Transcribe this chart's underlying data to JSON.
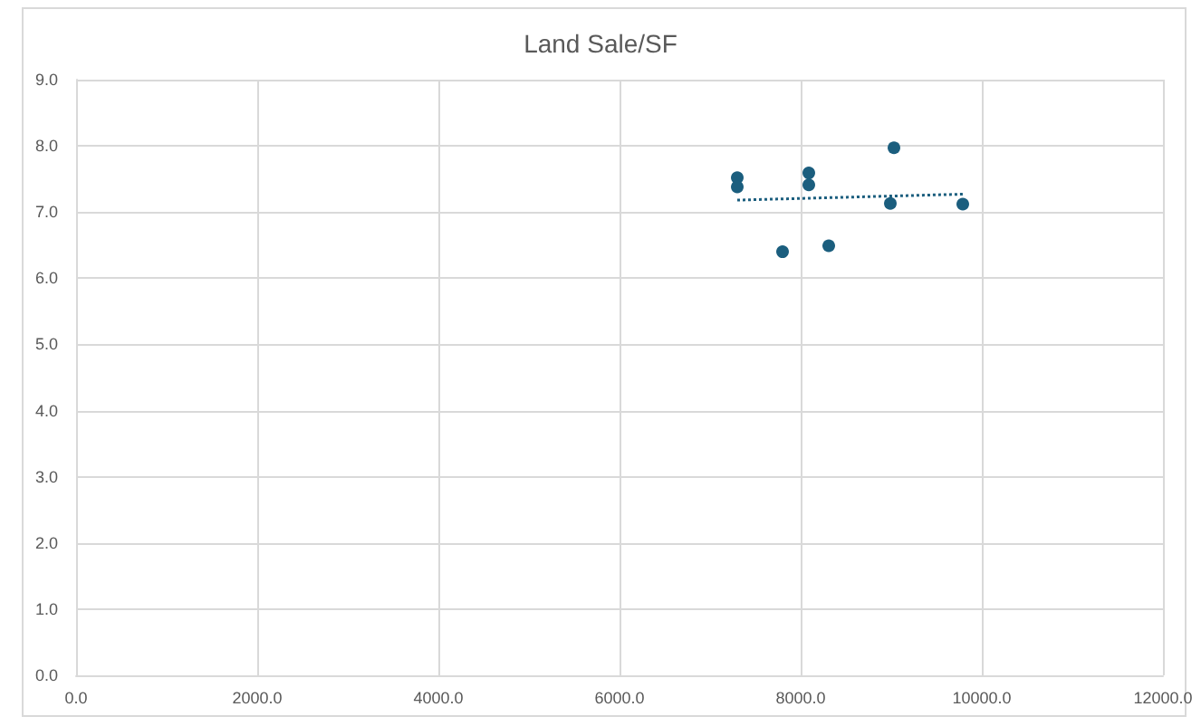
{
  "chart_data": {
    "type": "scatter",
    "title": "Land Sale/SF",
    "series": [
      {
        "color": "#1b5e7e",
        "marker": "circle",
        "x": [
          7300,
          7300,
          7800,
          8090,
          8090,
          8310,
          8990,
          9030,
          9790
        ],
        "values": [
          7.52,
          7.38,
          6.4,
          7.59,
          7.41,
          6.49,
          7.13,
          7.97,
          7.12
        ]
      },
      {
        "type": "line",
        "color": "#1b5e7e",
        "marker": "none",
        "line_style": "dotted",
        "x": [
          7300,
          9790
        ],
        "values": [
          7.18,
          7.27
        ]
      }
    ],
    "xlim": [
      0,
      12000
    ],
    "xticks": [
      {
        "value": 0,
        "label": "0.0"
      },
      {
        "value": 2000,
        "label": "2000.0"
      },
      {
        "value": 4000,
        "label": "4000.0"
      },
      {
        "value": 6000,
        "label": "6000.0"
      },
      {
        "value": 8000,
        "label": "8000.0"
      },
      {
        "value": 10000,
        "label": "10000.0"
      },
      {
        "value": 12000,
        "label": "12000.0"
      }
    ],
    "ylim": [
      0,
      9
    ],
    "yticks": [
      {
        "value": 0,
        "label": "0.0"
      },
      {
        "value": 1,
        "label": "1.0"
      },
      {
        "value": 2,
        "label": "2.0"
      },
      {
        "value": 3,
        "label": "3.0"
      },
      {
        "value": 4,
        "label": "4.0"
      },
      {
        "value": 5,
        "label": "5.0"
      },
      {
        "value": 6,
        "label": "6.0"
      },
      {
        "value": 7,
        "label": "7.0"
      },
      {
        "value": 8,
        "label": "8.0"
      },
      {
        "value": 9,
        "label": "9.0"
      }
    ],
    "grid": true
  }
}
